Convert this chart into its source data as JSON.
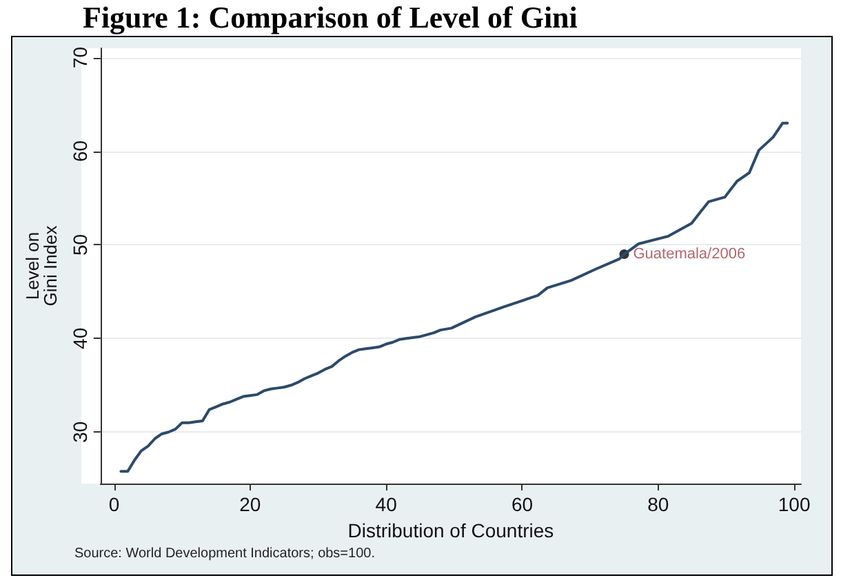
{
  "chart_data": {
    "type": "line",
    "title": "Figure 1: Comparison of Level of Gini",
    "xlabel": "Distribution of Countries",
    "ylabel": "Level on\nGini Index",
    "annotations": [
      "Source: World Development Indicators; obs=100."
    ],
    "xlim": [
      -2,
      101
    ],
    "xticks": [
      0,
      20,
      40,
      60,
      80,
      100
    ],
    "ylim": [
      24.5,
      71
    ],
    "yticks": [
      30,
      40,
      50,
      60,
      70
    ],
    "grid": "y",
    "marker": "none",
    "line_style": "solid",
    "series": [
      {
        "color": "#2c4a6b",
        "x": [
          1,
          2,
          3,
          4,
          5,
          6,
          7,
          8,
          9,
          10,
          11,
          12,
          13,
          14,
          15,
          16,
          17,
          18,
          19,
          20,
          21,
          22,
          23,
          24,
          25,
          26,
          27,
          28,
          29,
          30,
          31,
          32,
          33,
          34,
          35,
          36,
          37,
          38,
          39,
          40,
          41,
          42,
          43,
          44,
          45,
          46,
          47,
          48,
          49.6,
          53.1,
          57.4,
          62.3,
          63.7,
          67.2,
          70.8,
          74.3,
          75,
          77.1,
          81.4,
          84.9,
          87.4,
          89.8,
          91.6,
          93.4,
          94.8,
          96.9,
          98.3,
          99
        ],
        "values": [
          25.8,
          25.8,
          27,
          28,
          28.5,
          29.3,
          29.8,
          30,
          30.3,
          31,
          31,
          31.1,
          31.2,
          32.4,
          32.7,
          33,
          33.2,
          33.5,
          33.8,
          33.9,
          34,
          34.4,
          34.6,
          34.7,
          34.8,
          35,
          35.3,
          35.7,
          36,
          36.3,
          36.7,
          37,
          37.6,
          38.1,
          38.5,
          38.8,
          38.9,
          39,
          39.1,
          39.4,
          39.6,
          39.9,
          40,
          40.1,
          40.2,
          40.4,
          40.6,
          40.9,
          41.1,
          42.3,
          43.4,
          44.6,
          45.4,
          46.2,
          47.4,
          48.5,
          49,
          50.1,
          50.9,
          52.3,
          54.6,
          55.1,
          56.8,
          57.7,
          60.1,
          61.5,
          63,
          63
        ]
      },
      {
        "type": "scatter",
        "name": "Guatemala/2006",
        "color": "#000000",
        "marker": "circle",
        "x": [
          75
        ],
        "values": [
          49
        ]
      }
    ]
  }
}
